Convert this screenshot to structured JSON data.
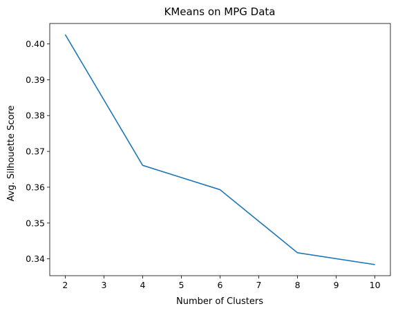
{
  "chart_data": {
    "type": "line",
    "title": "KMeans on MPG Data",
    "xlabel": "Number of Clusters",
    "ylabel": "Avg. Silhouette Score",
    "x": [
      2,
      4,
      6,
      8,
      10
    ],
    "series": [
      {
        "values": [
          0.4026,
          0.3661,
          0.3593,
          0.3417,
          0.3384
        ]
      }
    ],
    "xlim": [
      1.6,
      10.4
    ],
    "ylim": [
      0.3353,
      0.4057
    ],
    "xticks": [
      2,
      3,
      4,
      5,
      6,
      7,
      8,
      9,
      10
    ],
    "xtick_labels": [
      "2",
      "3",
      "4",
      "5",
      "6",
      "7",
      "8",
      "9",
      "10"
    ],
    "yticks": [
      0.34,
      0.35,
      0.36,
      0.37,
      0.38,
      0.39,
      0.4
    ],
    "ytick_labels": [
      "0.34",
      "0.35",
      "0.36",
      "0.37",
      "0.38",
      "0.39",
      "0.40"
    ],
    "grid": false,
    "legend": false,
    "line_color": "#1f77b4"
  }
}
